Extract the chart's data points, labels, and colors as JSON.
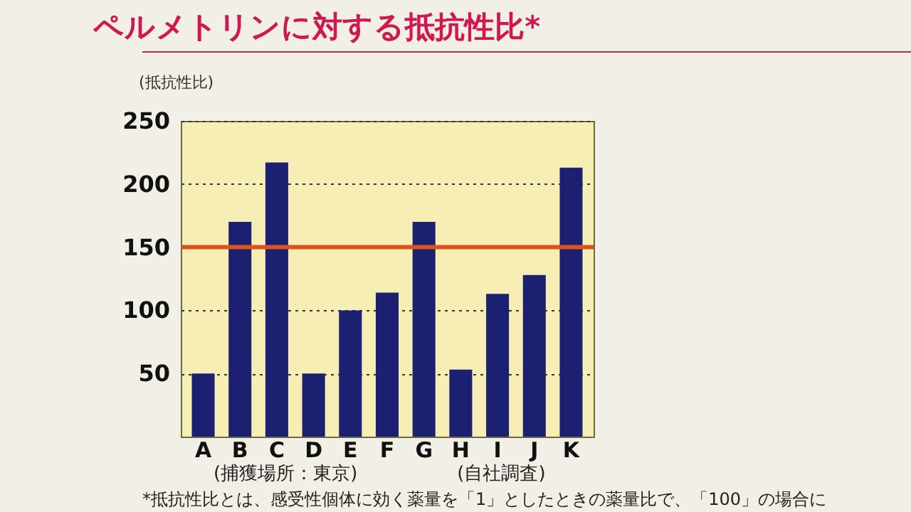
{
  "chart_data": {
    "type": "bar",
    "title": "ペルメトリンに対する抵抗性比*",
    "ylabel": "(抵抗性比)",
    "categories": [
      "A",
      "B",
      "C",
      "D",
      "E",
      "F",
      "G",
      "H",
      "I",
      "J",
      "K"
    ],
    "values": [
      50,
      170,
      217,
      50,
      100,
      114,
      170,
      53,
      113,
      128,
      213
    ],
    "color": "#1b2070",
    "ylim": [
      0,
      250
    ],
    "yticks": [
      50,
      100,
      150,
      200,
      250
    ],
    "grid": "y",
    "ref_lines": [
      {
        "axis": "y",
        "value": 150,
        "color": "#d9541e"
      }
    ],
    "annotations": [
      "(捕獲場所：東京)",
      "(自社調査)",
      "*抵抗性比とは、感受性個体に効く薬量を「1」としたときの薬量比で、「100」の場合に"
    ]
  }
}
